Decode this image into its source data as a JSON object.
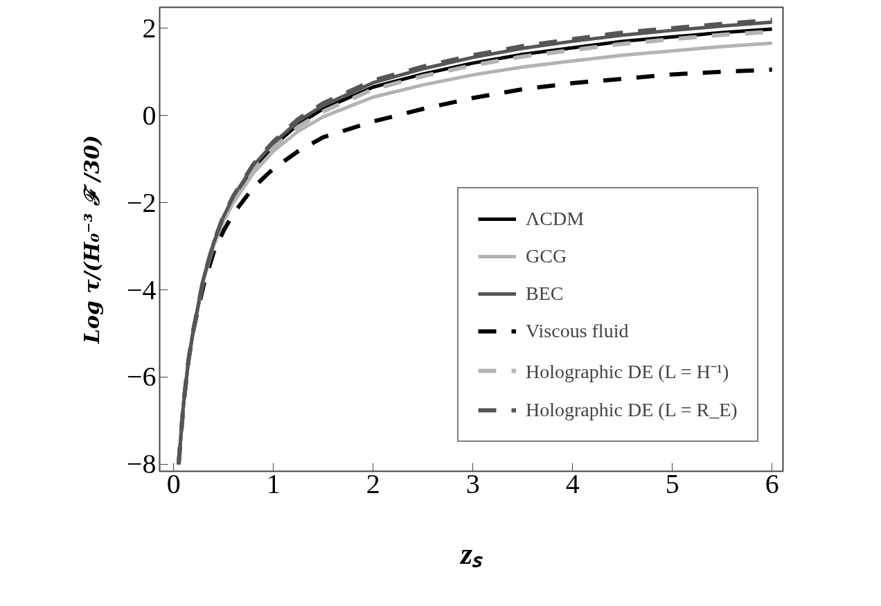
{
  "chart_data": {
    "type": "line",
    "xlabel": "zₛ",
    "ylabel": "Log τ/(H₀⁻³ ℱ /30)",
    "x": [
      0.05,
      0.1,
      0.15,
      0.2,
      0.3,
      0.4,
      0.5,
      0.6,
      0.8,
      1.0,
      1.25,
      1.5,
      2.0,
      2.5,
      3.0,
      3.5,
      4.0,
      4.5,
      5.0,
      5.5,
      6.0
    ],
    "series": [
      {
        "name": "ΛCDM",
        "color": "#000000",
        "line_style": "solid",
        "values": [
          -8.0,
          -6.6,
          -5.6,
          -4.9,
          -3.75,
          -2.95,
          -2.35,
          -1.9,
          -1.2,
          -0.7,
          -0.2,
          0.15,
          0.65,
          0.95,
          1.2,
          1.4,
          1.55,
          1.7,
          1.8,
          1.9,
          1.98
        ]
      },
      {
        "name": "GCG",
        "color": "#b3b3b3",
        "line_style": "solid",
        "values": [
          -8.0,
          -6.6,
          -5.6,
          -4.9,
          -3.77,
          -3.0,
          -2.42,
          -2.0,
          -1.32,
          -0.82,
          -0.36,
          -0.03,
          0.42,
          0.7,
          0.93,
          1.11,
          1.25,
          1.38,
          1.48,
          1.58,
          1.66
        ]
      },
      {
        "name": "BEC",
        "color": "#555555",
        "line_style": "solid",
        "values": [
          -8.0,
          -6.6,
          -5.6,
          -4.9,
          -3.74,
          -2.93,
          -2.32,
          -1.86,
          -1.15,
          -0.64,
          -0.13,
          0.23,
          0.75,
          1.07,
          1.33,
          1.54,
          1.7,
          1.84,
          1.95,
          2.05,
          2.14
        ]
      },
      {
        "name": "Viscous fluid",
        "color": "#000000",
        "line_style": "dashed",
        "values": [
          -8.0,
          -6.6,
          -5.6,
          -4.9,
          -3.9,
          -3.15,
          -2.65,
          -2.25,
          -1.65,
          -1.22,
          -0.82,
          -0.5,
          -0.14,
          0.15,
          0.4,
          0.6,
          0.74,
          0.84,
          0.94,
          1.0,
          1.05
        ]
      },
      {
        "name": "Holographic DE (L = H⁻¹)",
        "color": "#b3b3b3",
        "line_style": "dashed",
        "values": [
          -8.0,
          -6.6,
          -5.6,
          -4.9,
          -3.76,
          -2.97,
          -2.38,
          -1.93,
          -1.24,
          -0.75,
          -0.26,
          0.09,
          0.6,
          0.9,
          1.15,
          1.35,
          1.5,
          1.64,
          1.75,
          1.85,
          1.92
        ]
      },
      {
        "name": "Holographic DE (L = R_E)",
        "color": "#555555",
        "line_style": "dashed",
        "values": [
          -8.0,
          -6.6,
          -5.6,
          -4.9,
          -3.73,
          -2.92,
          -2.3,
          -1.84,
          -1.12,
          -0.6,
          -0.08,
          0.28,
          0.8,
          1.12,
          1.38,
          1.59,
          1.75,
          1.9,
          2.0,
          2.1,
          2.19
        ]
      }
    ],
    "xlim": [
      -0.14,
      6.11
    ],
    "ylim": [
      -8.16,
      2.48
    ],
    "xticks": [
      0,
      1,
      2,
      3,
      4,
      5,
      6
    ],
    "yticks": [
      -8,
      -6,
      -4,
      -2,
      0,
      2
    ],
    "grid": false,
    "legend": "right",
    "marker": "none"
  }
}
